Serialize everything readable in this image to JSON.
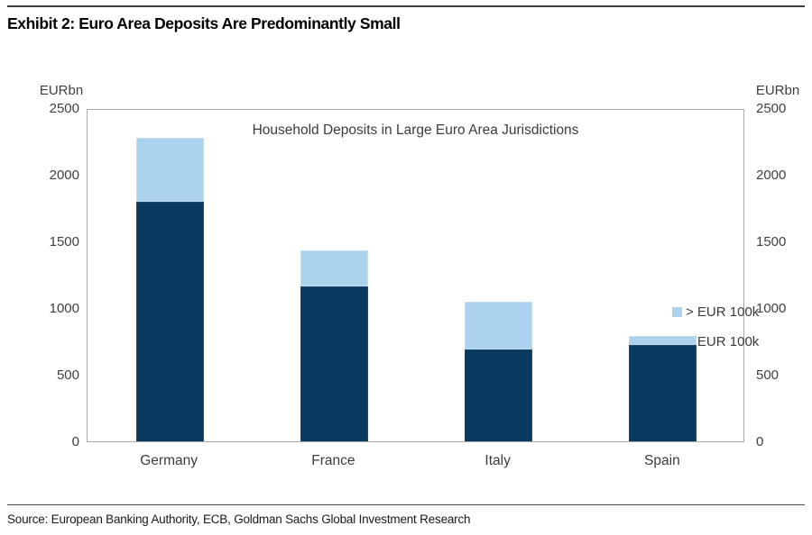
{
  "exhibit": {
    "title": "Exhibit 2: Euro Area Deposits Are Predominantly Small",
    "source": "Source: European Banking Authority, ECB, Goldman Sachs Global Investment Research"
  },
  "chart_data": {
    "type": "bar",
    "stacked": true,
    "title": "Household Deposits in Large Euro Area Jurisdictions",
    "unit_label": "EURbn",
    "categories": [
      "Germany",
      "France",
      "Italy",
      "Spain"
    ],
    "series": [
      {
        "name": "< EUR 100k",
        "color": "#0a3a60",
        "values": [
          1800,
          1160,
          690,
          720
        ]
      },
      {
        "name": "> EUR 100k",
        "color": "#abd3ee",
        "values": [
          480,
          270,
          360,
          65
        ]
      }
    ],
    "totals": [
      2280,
      1430,
      1050,
      785
    ],
    "legend": [
      {
        "label": "> EUR 100k",
        "color": "#abd3ee"
      },
      {
        "label": "< EUR 100k",
        "color": "#0a3a60"
      }
    ],
    "legend_position": "inside-upper-right",
    "ylim": [
      0,
      2500
    ],
    "yticks": [
      2500,
      2000,
      1500,
      1000,
      500,
      0
    ],
    "y_axis_sides": [
      "left",
      "right"
    ],
    "grid": false,
    "colors": {
      "bar_dark": "#0a3a60",
      "bar_light": "#abd3ee",
      "axis_frame": "#a9a9a9",
      "text": "#3c3c3c"
    }
  }
}
